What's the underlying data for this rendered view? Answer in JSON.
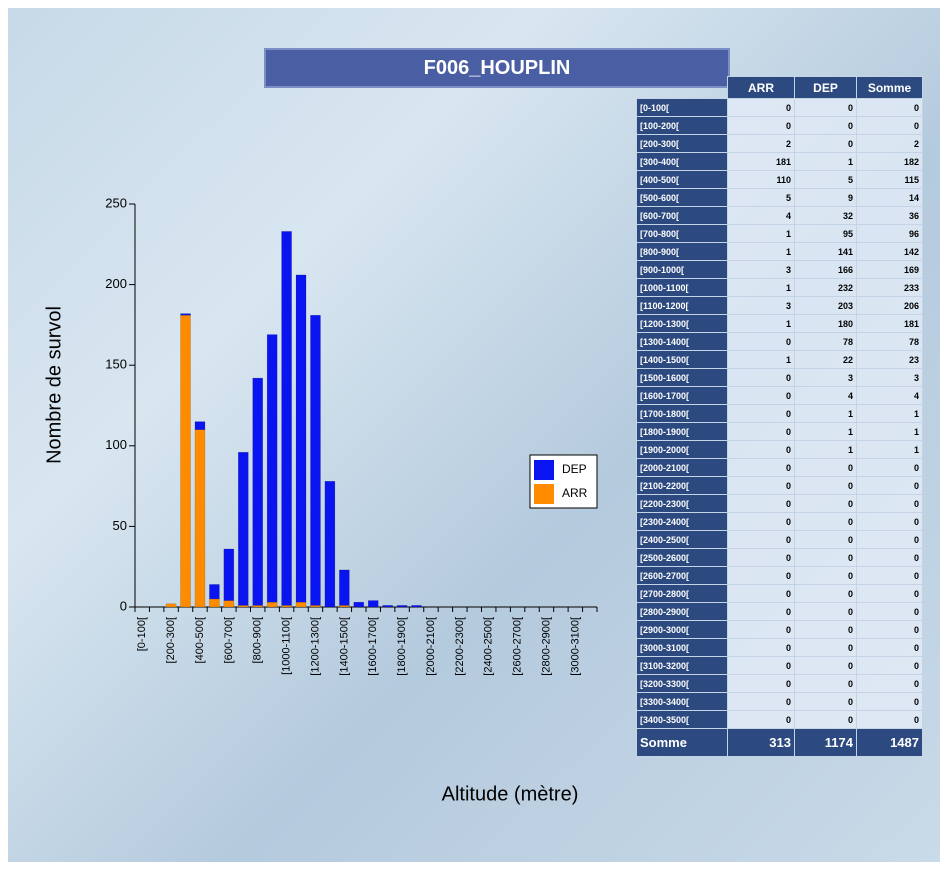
{
  "chart_data": {
    "type": "bar",
    "stacked": true,
    "y_label": "Nombre de survol",
    "x_label": "Altitude (mètre)",
    "categories": [
      "[0-100[",
      null,
      "[200-300[",
      null,
      "[400-500[",
      null,
      "[600-700[",
      null,
      "[800-900[",
      null,
      "[1000-1100[",
      null,
      "[1200-1300[",
      null,
      "[1400-1500[",
      null,
      "[1600-1700[",
      null,
      "[1800-1900[",
      null,
      "[2000-2100[",
      null,
      "[2200-2300[",
      null,
      "[2400-2500[",
      null,
      "[2600-2700[",
      null,
      "[2800-2900[",
      null,
      "[3000-3100[",
      null
    ],
    "series": [
      {
        "name": "ARR",
        "color": "#ff8c00",
        "values": [
          0,
          0,
          2,
          181,
          110,
          5,
          4,
          1,
          1,
          3,
          1,
          3,
          1,
          0,
          1,
          0,
          0,
          0,
          0,
          0,
          0,
          0,
          0,
          0,
          0,
          0,
          0,
          0,
          0,
          0,
          0,
          0
        ]
      },
      {
        "name": "DEP",
        "color": "#0a14f0",
        "values": [
          0,
          0,
          0,
          1,
          5,
          9,
          32,
          95,
          141,
          166,
          232,
          203,
          180,
          78,
          22,
          3,
          4,
          1,
          1,
          1,
          0,
          0,
          0,
          0,
          0,
          0,
          0,
          0,
          0,
          0,
          0,
          0
        ]
      }
    ],
    "ylim": [
      0,
      250
    ],
    "yticks": [
      0,
      50,
      100,
      150,
      200,
      250
    ]
  },
  "table": {
    "title": "F006_HOUPLIN",
    "header": [
      "ARR",
      "DEP",
      "Somme"
    ],
    "rows": [
      [
        "[0-100[",
        0,
        0,
        0
      ],
      [
        "[100-200[",
        0,
        0,
        0
      ],
      [
        "[200-300[",
        2,
        0,
        2
      ],
      [
        "[300-400[",
        181,
        1,
        182
      ],
      [
        "[400-500[",
        110,
        5,
        115
      ],
      [
        "[500-600[",
        5,
        9,
        14
      ],
      [
        "[600-700[",
        4,
        32,
        36
      ],
      [
        "[700-800[",
        1,
        95,
        96
      ],
      [
        "[800-900[",
        1,
        141,
        142
      ],
      [
        "[900-1000[",
        3,
        166,
        169
      ],
      [
        "[1000-1100[",
        1,
        232,
        233
      ],
      [
        "[1100-1200[",
        3,
        203,
        206
      ],
      [
        "[1200-1300[",
        1,
        180,
        181
      ],
      [
        "[1300-1400[",
        0,
        78,
        78
      ],
      [
        "[1400-1500[",
        1,
        22,
        23
      ],
      [
        "[1500-1600[",
        0,
        3,
        3
      ],
      [
        "[1600-1700[",
        0,
        4,
        4
      ],
      [
        "[1700-1800[",
        0,
        1,
        1
      ],
      [
        "[1800-1900[",
        0,
        1,
        1
      ],
      [
        "[1900-2000[",
        0,
        1,
        1
      ],
      [
        "[2000-2100[",
        0,
        0,
        0
      ],
      [
        "[2100-2200[",
        0,
        0,
        0
      ],
      [
        "[2200-2300[",
        0,
        0,
        0
      ],
      [
        "[2300-2400[",
        0,
        0,
        0
      ],
      [
        "[2400-2500[",
        0,
        0,
        0
      ],
      [
        "[2500-2600[",
        0,
        0,
        0
      ],
      [
        "[2600-2700[",
        0,
        0,
        0
      ],
      [
        "[2700-2800[",
        0,
        0,
        0
      ],
      [
        "[2800-2900[",
        0,
        0,
        0
      ],
      [
        "[2900-3000[",
        0,
        0,
        0
      ],
      [
        "[3000-3100[",
        0,
        0,
        0
      ],
      [
        "[3100-3200[",
        0,
        0,
        0
      ],
      [
        "[3200-3300[",
        0,
        0,
        0
      ],
      [
        "[3300-3400[",
        0,
        0,
        0
      ],
      [
        "[3400-3500[",
        0,
        0,
        0
      ]
    ],
    "footer": [
      "Somme",
      313,
      1174,
      1487
    ]
  }
}
